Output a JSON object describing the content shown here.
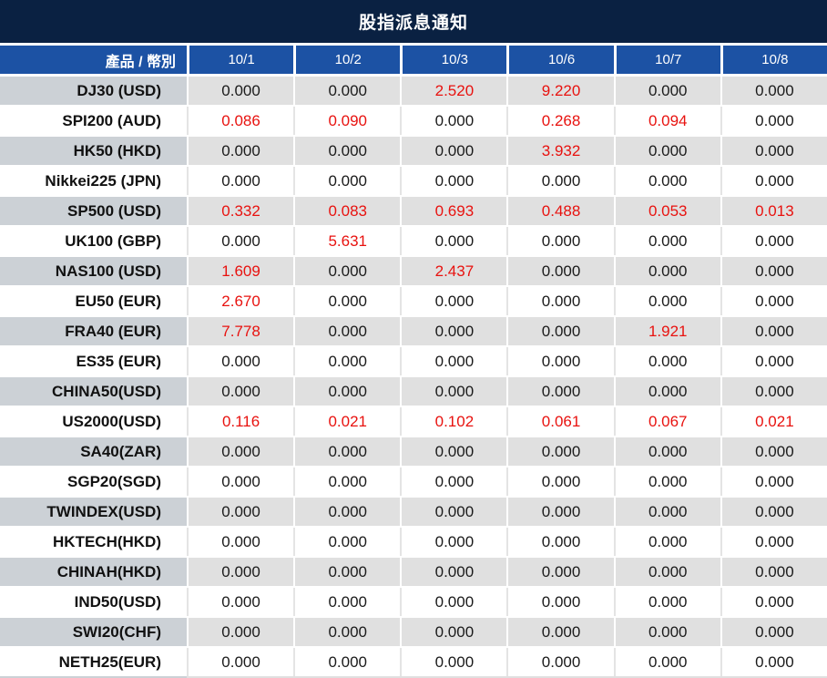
{
  "title": "股指派息通知",
  "colors": {
    "title_bg": "#0a2142",
    "header_bg": "#1c52a4",
    "stripe_label_bg": "#ccd1d6",
    "stripe_value_bg": "#e0e0e0",
    "zero_value_color": "#1a1a1a",
    "nonzero_value_color": "#e8120f"
  },
  "table": {
    "product_header": "產品 / 幣別",
    "date_headers": [
      "10/1",
      "10/2",
      "10/3",
      "10/6",
      "10/7",
      "10/8"
    ],
    "rows": [
      {
        "product": "DJ30 (USD)",
        "values": [
          "0.000",
          "0.000",
          "2.520",
          "9.220",
          "0.000",
          "0.000"
        ]
      },
      {
        "product": "SPI200 (AUD)",
        "values": [
          "0.086",
          "0.090",
          "0.000",
          "0.268",
          "0.094",
          "0.000"
        ]
      },
      {
        "product": "HK50 (HKD)",
        "values": [
          "0.000",
          "0.000",
          "0.000",
          "3.932",
          "0.000",
          "0.000"
        ]
      },
      {
        "product": "Nikkei225 (JPN)",
        "values": [
          "0.000",
          "0.000",
          "0.000",
          "0.000",
          "0.000",
          "0.000"
        ]
      },
      {
        "product": "SP500 (USD)",
        "values": [
          "0.332",
          "0.083",
          "0.693",
          "0.488",
          "0.053",
          "0.013"
        ]
      },
      {
        "product": "UK100 (GBP)",
        "values": [
          "0.000",
          "5.631",
          "0.000",
          "0.000",
          "0.000",
          "0.000"
        ]
      },
      {
        "product": "NAS100 (USD)",
        "values": [
          "1.609",
          "0.000",
          "2.437",
          "0.000",
          "0.000",
          "0.000"
        ]
      },
      {
        "product": "EU50 (EUR)",
        "values": [
          "2.670",
          "0.000",
          "0.000",
          "0.000",
          "0.000",
          "0.000"
        ]
      },
      {
        "product": "FRA40 (EUR)",
        "values": [
          "7.778",
          "0.000",
          "0.000",
          "0.000",
          "1.921",
          "0.000"
        ]
      },
      {
        "product": "ES35 (EUR)",
        "values": [
          "0.000",
          "0.000",
          "0.000",
          "0.000",
          "0.000",
          "0.000"
        ]
      },
      {
        "product": "CHINA50(USD)",
        "values": [
          "0.000",
          "0.000",
          "0.000",
          "0.000",
          "0.000",
          "0.000"
        ]
      },
      {
        "product": "US2000(USD)",
        "values": [
          "0.116",
          "0.021",
          "0.102",
          "0.061",
          "0.067",
          "0.021"
        ]
      },
      {
        "product": "SA40(ZAR)",
        "values": [
          "0.000",
          "0.000",
          "0.000",
          "0.000",
          "0.000",
          "0.000"
        ]
      },
      {
        "product": "SGP20(SGD)",
        "values": [
          "0.000",
          "0.000",
          "0.000",
          "0.000",
          "0.000",
          "0.000"
        ]
      },
      {
        "product": "TWINDEX(USD)",
        "values": [
          "0.000",
          "0.000",
          "0.000",
          "0.000",
          "0.000",
          "0.000"
        ]
      },
      {
        "product": "HKTECH(HKD)",
        "values": [
          "0.000",
          "0.000",
          "0.000",
          "0.000",
          "0.000",
          "0.000"
        ]
      },
      {
        "product": "CHINAH(HKD)",
        "values": [
          "0.000",
          "0.000",
          "0.000",
          "0.000",
          "0.000",
          "0.000"
        ]
      },
      {
        "product": "IND50(USD)",
        "values": [
          "0.000",
          "0.000",
          "0.000",
          "0.000",
          "0.000",
          "0.000"
        ]
      },
      {
        "product": "SWI20(CHF)",
        "values": [
          "0.000",
          "0.000",
          "0.000",
          "0.000",
          "0.000",
          "0.000"
        ]
      },
      {
        "product": "NETH25(EUR)",
        "values": [
          "0.000",
          "0.000",
          "0.000",
          "0.000",
          "0.000",
          "0.000"
        ]
      }
    ]
  }
}
